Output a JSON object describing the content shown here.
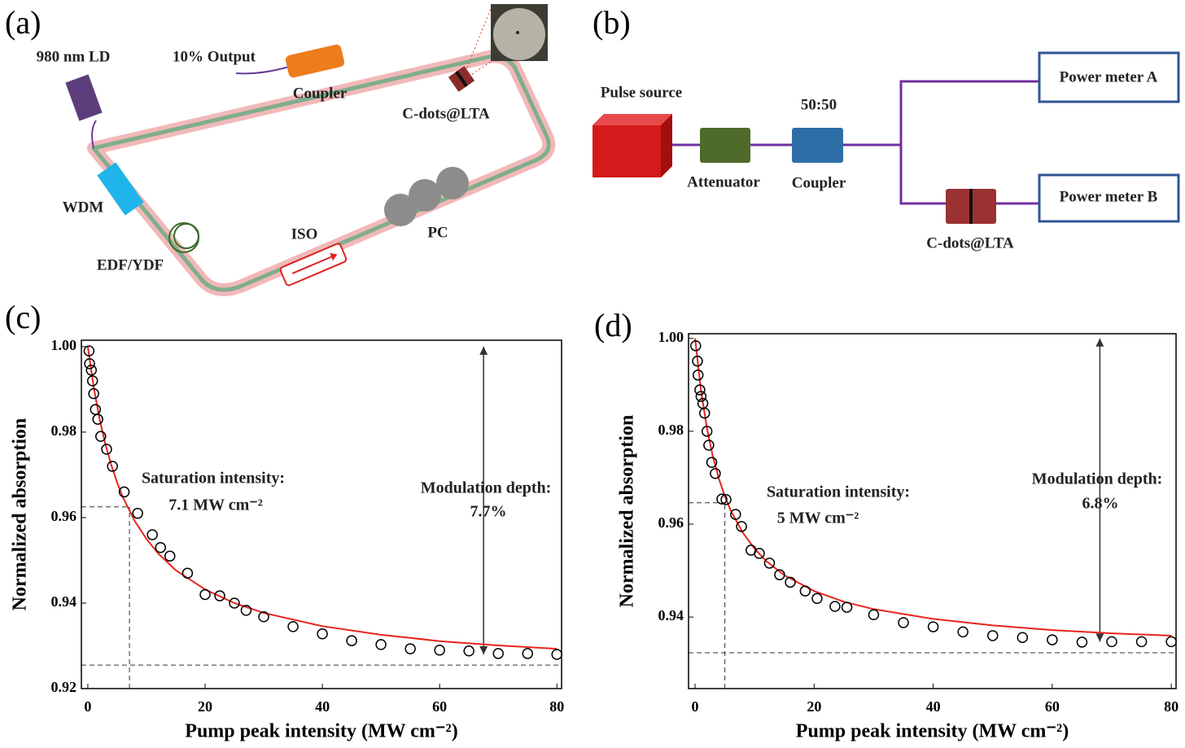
{
  "panel_labels": [
    "(a)",
    "(b)",
    "(c)",
    "(d)"
  ],
  "diagram_a": {
    "labels": [
      "980 nm LD",
      "10% Output",
      "Coupler",
      "C-dots@LTA",
      "WDM",
      "EDF/YDF",
      "ISO",
      "PC"
    ]
  },
  "diagram_b": {
    "labels": [
      "Pulse source",
      "Attenuator",
      "50:50",
      "Coupler",
      "Power meter A",
      "Power meter B",
      "C-dots@LTA"
    ]
  },
  "chart_data": [
    {
      "type": "scatter",
      "xlabel": "Pump peak intensity (MW cm⁻²)",
      "ylabel": "Normalized absorption",
      "xlim": [
        -1.1,
        80.8
      ],
      "ylim": [
        0.92,
        1.0015
      ],
      "xticks": [
        0,
        20,
        40,
        60,
        80
      ],
      "yticks": [
        0.92,
        0.94,
        0.96,
        0.98,
        {
          "value": 1,
          "label": "1.00"
        }
      ],
      "marker_color": "#000000",
      "x": [
        0.2,
        0.3,
        0.6,
        0.8,
        1.0,
        1.3,
        1.7,
        2.2,
        3.2,
        4.2,
        6.2,
        8.5,
        11,
        12.4,
        14,
        17,
        20,
        22.5,
        25,
        27,
        30,
        35,
        40,
        45,
        50,
        55,
        60,
        65,
        70,
        75,
        80
      ],
      "values": [
        0.999,
        0.996,
        0.9945,
        0.992,
        0.989,
        0.9853,
        0.983,
        0.979,
        0.976,
        0.972,
        0.966,
        0.961,
        0.956,
        0.953,
        0.951,
        0.947,
        0.942,
        0.9417,
        0.94,
        0.9383,
        0.9368,
        0.9345,
        0.9328,
        0.9312,
        0.9303,
        0.9293,
        0.929,
        0.9288,
        0.9282,
        0.9282,
        0.928
      ],
      "fit": {
        "color": "#e8241c",
        "x": [
          0,
          1,
          2,
          3,
          4,
          5,
          6,
          8,
          10,
          12,
          15,
          20,
          25,
          30,
          40,
          50,
          60,
          70,
          80
        ],
        "values": [
          1.0,
          0.9905,
          0.9831,
          0.9771,
          0.9723,
          0.9682,
          0.9647,
          0.9592,
          0.955,
          0.9516,
          0.9477,
          0.9432,
          0.94,
          0.9377,
          0.9346,
          0.9326,
          0.9311,
          0.9301,
          0.9293
        ]
      },
      "saturation": {
        "x": 7.1,
        "y": 0.9625
      },
      "floor": 0.9255,
      "arrow": {
        "x": 67.5,
        "y": [
          0.928,
          1.0
        ]
      },
      "annotations": [
        "Saturation intensity:",
        "7.1 MW cm⁻²",
        "Modulation depth:",
        "7.7%"
      ]
    },
    {
      "type": "scatter",
      "xlabel": "Pump peak intensity (MW cm⁻²)",
      "ylabel": "Normalized absorption",
      "xlim": [
        -1.1,
        80.8
      ],
      "ylim": [
        0.9246,
        1.001
      ],
      "xticks": [
        0,
        20,
        40,
        60,
        80
      ],
      "yticks": [
        0.94,
        0.96,
        0.98,
        {
          "value": 1,
          "label": "1.00"
        }
      ],
      "marker_color": "#000000",
      "x": [
        0.1,
        0.4,
        0.5,
        0.8,
        1.0,
        1.3,
        1.6,
        2.0,
        2.3,
        2.8,
        3.4,
        4.5,
        5.2,
        6.8,
        7.8,
        9.4,
        10.8,
        12.5,
        14.2,
        16,
        18.5,
        20.5,
        23.5,
        25.5,
        30,
        35,
        40,
        45,
        50,
        55,
        60,
        65,
        70,
        75,
        80
      ],
      "values": [
        0.9984,
        0.9951,
        0.9921,
        0.9889,
        0.9875,
        0.986,
        0.9839,
        0.98,
        0.977,
        0.9733,
        0.9709,
        0.9654,
        0.9653,
        0.9621,
        0.9595,
        0.9544,
        0.9537,
        0.9516,
        0.9491,
        0.9475,
        0.9456,
        0.944,
        0.9423,
        0.9421,
        0.9405,
        0.9388,
        0.9379,
        0.9368,
        0.936,
        0.9356,
        0.9351,
        0.9346,
        0.9347,
        0.9347,
        0.9347
      ],
      "fit": {
        "color": "#e8241c",
        "x": [
          0,
          1,
          2,
          3,
          4,
          5,
          6,
          8,
          10,
          12,
          15,
          20,
          25,
          30,
          40,
          50,
          60,
          70,
          80
        ],
        "values": [
          1.0,
          0.9887,
          0.9806,
          0.9745,
          0.9698,
          0.966,
          0.9629,
          0.9582,
          0.9547,
          0.952,
          0.949,
          0.9456,
          0.9433,
          0.9417,
          0.9396,
          0.9382,
          0.9372,
          0.9365,
          0.936
        ]
      },
      "saturation": {
        "x": 5,
        "y": 0.9646
      },
      "floor": 0.9323,
      "arrow": {
        "x": 68,
        "y": [
          0.9347,
          1.0
        ]
      },
      "annotations": [
        "Saturation intensity:",
        "5 MW cm⁻²",
        "Modulation depth:",
        "6.8%"
      ]
    }
  ]
}
